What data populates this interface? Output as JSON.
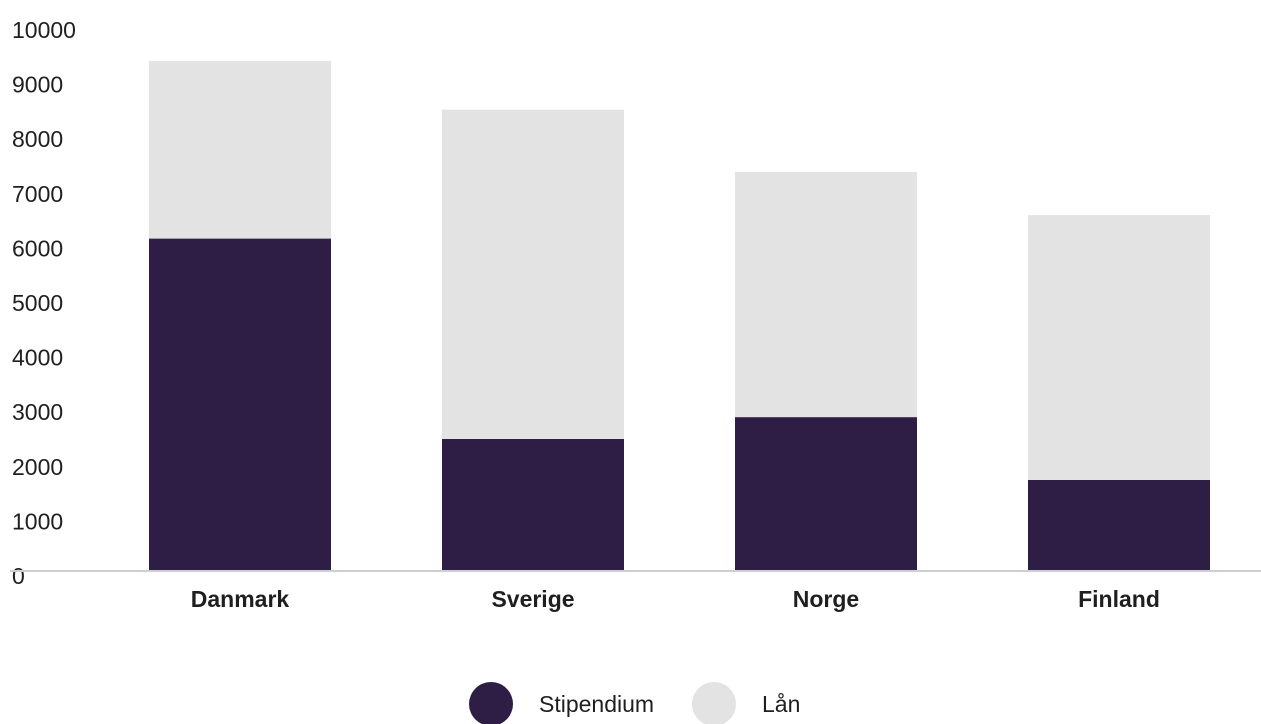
{
  "chart_data": {
    "type": "bar",
    "stacked": true,
    "categories": [
      "Danmark",
      "Sverige",
      "Norge",
      "Finland"
    ],
    "series": [
      {
        "name": "Stipendium",
        "values": [
          6070,
          2400,
          2800,
          1650
        ],
        "color": "#2e1d45"
      },
      {
        "name": "Lån",
        "values": [
          3250,
          6030,
          4490,
          4850
        ],
        "color": "#e3e3e3"
      }
    ],
    "ylim": [
      0,
      10000
    ],
    "yticks": [
      "0",
      "1000",
      "2000",
      "3000",
      "4000",
      "5000",
      "6000",
      "7000",
      "8000",
      "9000",
      "10000"
    ],
    "grid": false,
    "legend_position": "bottom-center",
    "axis_color": "#cfcfcf"
  }
}
